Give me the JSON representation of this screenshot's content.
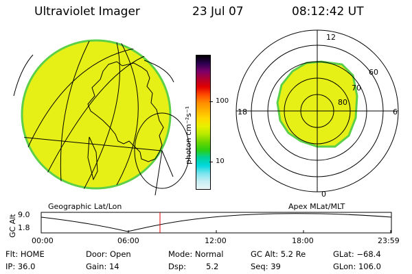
{
  "header": {
    "instrument": "Ultraviolet Imager",
    "date": "23 Jul 07",
    "time": "08:12:42 UT"
  },
  "colorbar": {
    "unit": "photon cm⁻²s⁻¹",
    "ticks": [
      "100",
      "10"
    ],
    "colors": [
      "#000000",
      "#2b0050",
      "#7a006a",
      "#b00030",
      "#e00000",
      "#ff4a00",
      "#ff8c00",
      "#ffb200",
      "#ffd800",
      "#e8f000",
      "#b8ea00",
      "#6ed600",
      "#2ccf10",
      "#00d09a",
      "#00d8dc",
      "#78e4ee",
      "#c6eef4",
      "#eaf6f8"
    ]
  },
  "geo_panel": {
    "label": "Geographic Lat/Lon",
    "disk_color": "#e6f016",
    "edge_color": "#5ccf48"
  },
  "polar_panel": {
    "label": "Apex MLat/MLT",
    "mlt_labels": {
      "top": "12",
      "left": "18",
      "right": "6",
      "bottom": "0"
    },
    "lat_labels": [
      "60",
      "70",
      "80"
    ]
  },
  "altitude_plot": {
    "ylabel": "GC Alt",
    "ymax": "9.0",
    "ymin": "1.8",
    "x_ticks": [
      "00:00",
      "06:00",
      "12:00",
      "18:00",
      "23:59"
    ],
    "current_marker_time": "08:12",
    "marker_color": "#e00000"
  },
  "footer": {
    "row1": {
      "flt": "Flt: HOME",
      "door": "Door: Open",
      "mode": "Mode: Normal",
      "gc_alt": "GC Alt: 5.2 Re",
      "glat": "GLat: −68.4"
    },
    "row2": {
      "ip": "IP: 36.0",
      "gain": "Gain: 14",
      "dsp_label": "Dsp:",
      "dsp_value": "5.2",
      "seq": "Seq: 39",
      "glon": "GLon: 106.0"
    }
  }
}
